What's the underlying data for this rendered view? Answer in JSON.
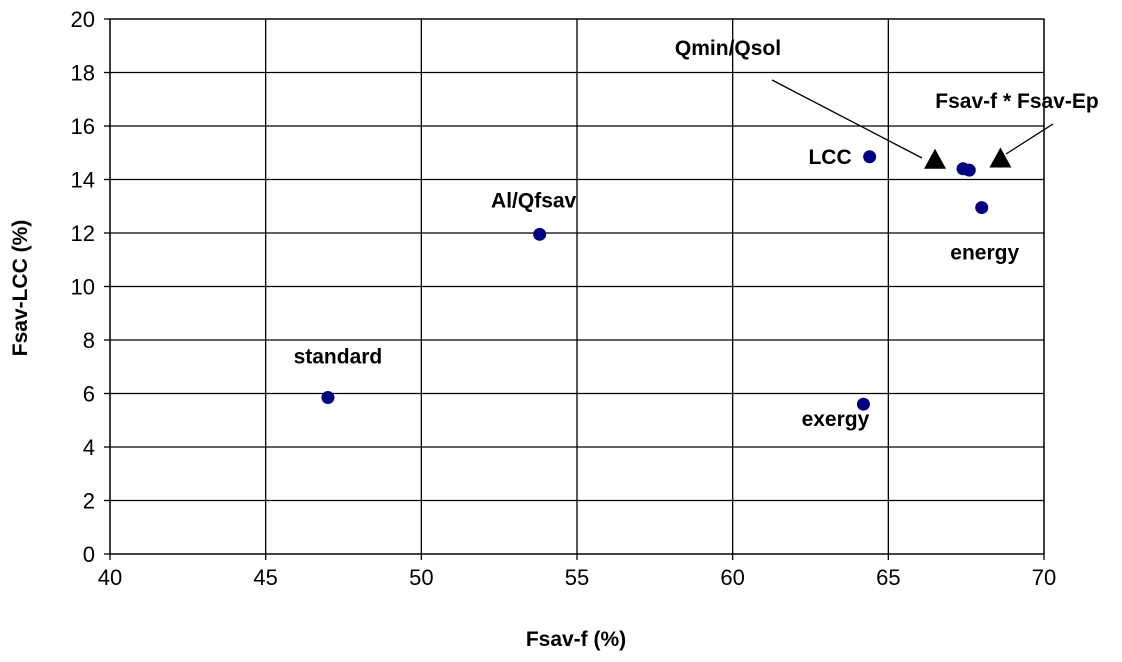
{
  "chart_data": {
    "type": "scatter",
    "title": "",
    "xlabel": "Fsav-f (%)",
    "ylabel": "Fsav-LCC (%)",
    "xlim": [
      40,
      70
    ],
    "ylim": [
      0,
      20
    ],
    "x_ticks": [
      "40",
      "45",
      "50",
      "55",
      "60",
      "65",
      "70"
    ],
    "y_ticks": [
      "0",
      "2",
      "4",
      "6",
      "8",
      "10",
      "12",
      "14",
      "16",
      "18",
      "20"
    ],
    "grid": true,
    "series": [
      {
        "marker": "circle",
        "color": "#000080",
        "points": [
          {
            "x": 47.0,
            "y": 5.85,
            "label": "standard"
          },
          {
            "x": 53.8,
            "y": 11.95,
            "label": "Al/Qfsav"
          },
          {
            "x": 64.2,
            "y": 5.6,
            "label": "exergy"
          },
          {
            "x": 64.4,
            "y": 14.85,
            "label": "LCC"
          },
          {
            "x": 67.4,
            "y": 14.4,
            "label": ""
          },
          {
            "x": 67.6,
            "y": 14.35,
            "label": ""
          },
          {
            "x": 68.0,
            "y": 12.95,
            "label": "energy"
          }
        ]
      }
    ],
    "annotations": [
      {
        "text": "Qmin/Qsol",
        "arrow_to": {
          "x": 66.5,
          "y": 14.7
        }
      },
      {
        "text": "Fsav-f * Fsav-Ep",
        "arrow_to": {
          "x": 68.6,
          "y": 14.75
        }
      }
    ]
  }
}
